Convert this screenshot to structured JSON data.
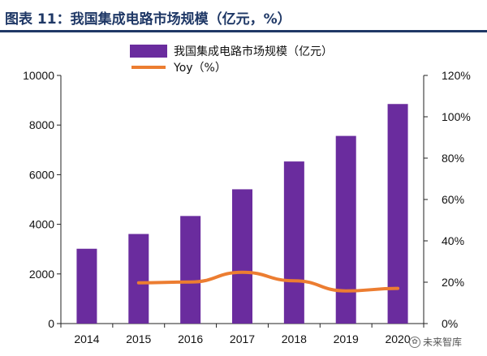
{
  "header": {
    "title": "图表 11：我国集成电路市场规模（亿元，%）"
  },
  "watermark": {
    "text": "未来智库",
    "icon": "wechat-icon"
  },
  "colors": {
    "bar": "#6a2c9e",
    "line": "#ec7d31",
    "title": "#1f3866"
  },
  "chart_data": {
    "type": "bar",
    "categories": [
      "2014",
      "2015",
      "2016",
      "2017",
      "2018",
      "2019",
      "2020"
    ],
    "series": [
      {
        "name": "我国集成电路市场规模（亿元）",
        "type": "bar",
        "axis": "left",
        "values": [
          3015,
          3610,
          4335,
          5411,
          6532,
          7562,
          8848
        ]
      },
      {
        "name": "Yoy（%）",
        "type": "line",
        "axis": "right",
        "values": [
          null,
          19.7,
          20.1,
          24.8,
          20.7,
          15.8,
          17.0
        ]
      }
    ],
    "y_left": {
      "min": 0,
      "max": 10000,
      "ticks": [
        "0",
        "2000",
        "4000",
        "6000",
        "8000",
        "10000"
      ]
    },
    "y_right": {
      "min": 0,
      "max": 120,
      "ticks": [
        "0%",
        "20%",
        "40%",
        "60%",
        "80%",
        "100%",
        "120%"
      ]
    },
    "legend_position": "top"
  }
}
